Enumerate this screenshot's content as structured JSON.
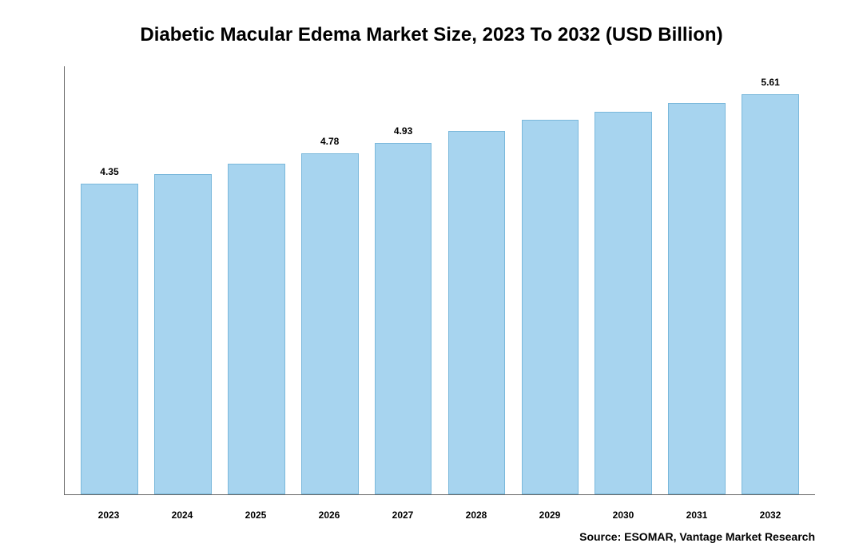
{
  "chart": {
    "type": "bar",
    "title": "Diabetic Macular Edema Market Size, 2023 To 2032 (USD Billion)",
    "title_fontsize": 24,
    "title_fontweight": "bold",
    "categories": [
      "2023",
      "2024",
      "2025",
      "2026",
      "2027",
      "2028",
      "2029",
      "2030",
      "2031",
      "2032"
    ],
    "values": [
      4.35,
      4.49,
      4.63,
      4.78,
      4.93,
      5.09,
      5.25,
      5.36,
      5.48,
      5.61
    ],
    "value_labels": [
      "4.35",
      "",
      "",
      "4.78",
      "4.93",
      "",
      "",
      "",
      "",
      "5.61"
    ],
    "bar_color": "#a7d4ef",
    "bar_border_color": "#7ab8db",
    "axis_color": "#666666",
    "background_color": "#ffffff",
    "value_label_fontsize": 12,
    "value_label_fontweight": "bold",
    "xtick_fontsize": 12,
    "xtick_fontweight": "bold",
    "ylim": [
      0,
      6.0
    ],
    "bar_width_ratio": 0.78,
    "source": "Source: ESOMAR, Vantage Market Research",
    "source_fontsize": 14,
    "source_fontweight": "bold"
  }
}
